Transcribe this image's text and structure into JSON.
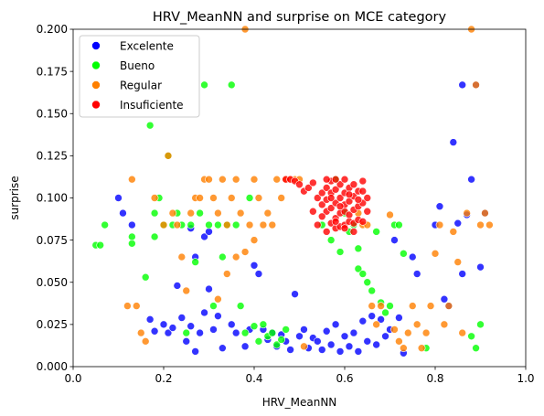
{
  "chart_data": {
    "type": "scatter",
    "title": "HRV_MeanNN and surprise on MCE category",
    "xlabel": "HRV_MeanNN",
    "ylabel": "surprise",
    "xlim": [
      0.0,
      1.0
    ],
    "ylim": [
      0.0,
      0.2
    ],
    "x_ticks": [
      "0.0",
      "0.2",
      "0.4",
      "0.6",
      "0.8",
      "1.0"
    ],
    "y_ticks": [
      "0.000",
      "0.025",
      "0.050",
      "0.075",
      "0.100",
      "0.125",
      "0.150",
      "0.175",
      "0.200"
    ],
    "grid": false,
    "legend_position": "top-left",
    "series": [
      {
        "name": "Excelente",
        "color": "#0000ff",
        "points": [
          [
            0.1,
            0.1
          ],
          [
            0.11,
            0.091
          ],
          [
            0.13,
            0.084
          ],
          [
            0.17,
            0.028
          ],
          [
            0.18,
            0.021
          ],
          [
            0.2,
            0.025
          ],
          [
            0.21,
            0.02
          ],
          [
            0.22,
            0.023
          ],
          [
            0.24,
            0.029
          ],
          [
            0.25,
            0.015
          ],
          [
            0.26,
            0.024
          ],
          [
            0.27,
            0.009
          ],
          [
            0.28,
            0.02
          ],
          [
            0.29,
            0.032
          ],
          [
            0.3,
            0.046
          ],
          [
            0.31,
            0.022
          ],
          [
            0.32,
            0.03
          ],
          [
            0.33,
            0.011
          ],
          [
            0.35,
            0.025
          ],
          [
            0.36,
            0.02
          ],
          [
            0.38,
            0.012
          ],
          [
            0.39,
            0.022
          ],
          [
            0.4,
            0.06
          ],
          [
            0.41,
            0.055
          ],
          [
            0.42,
            0.022
          ],
          [
            0.43,
            0.016
          ],
          [
            0.44,
            0.02
          ],
          [
            0.45,
            0.012
          ],
          [
            0.46,
            0.019
          ],
          [
            0.47,
            0.015
          ],
          [
            0.48,
            0.01
          ],
          [
            0.49,
            0.043
          ],
          [
            0.5,
            0.018
          ],
          [
            0.51,
            0.022
          ],
          [
            0.52,
            0.011
          ],
          [
            0.53,
            0.017
          ],
          [
            0.54,
            0.015
          ],
          [
            0.55,
            0.01
          ],
          [
            0.56,
            0.021
          ],
          [
            0.57,
            0.013
          ],
          [
            0.58,
            0.025
          ],
          [
            0.59,
            0.009
          ],
          [
            0.6,
            0.018
          ],
          [
            0.61,
            0.012
          ],
          [
            0.62,
            0.02
          ],
          [
            0.63,
            0.009
          ],
          [
            0.64,
            0.027
          ],
          [
            0.65,
            0.015
          ],
          [
            0.66,
            0.03
          ],
          [
            0.67,
            0.013
          ],
          [
            0.68,
            0.028
          ],
          [
            0.69,
            0.018
          ],
          [
            0.7,
            0.022
          ],
          [
            0.71,
            0.075
          ],
          [
            0.72,
            0.029
          ],
          [
            0.73,
            0.008
          ],
          [
            0.75,
            0.065
          ],
          [
            0.76,
            0.055
          ],
          [
            0.8,
            0.084
          ],
          [
            0.81,
            0.095
          ],
          [
            0.82,
            0.04
          ],
          [
            0.83,
            0.036
          ],
          [
            0.84,
            0.133
          ],
          [
            0.86,
            0.167
          ],
          [
            0.87,
            0.09
          ],
          [
            0.88,
            0.111
          ],
          [
            0.89,
            0.167
          ],
          [
            0.9,
            0.059
          ],
          [
            0.91,
            0.091
          ],
          [
            0.85,
            0.085
          ],
          [
            0.86,
            0.055
          ],
          [
            0.23,
            0.048
          ],
          [
            0.26,
            0.082
          ],
          [
            0.27,
            0.065
          ],
          [
            0.29,
            0.077
          ],
          [
            0.3,
            0.08
          ]
        ]
      },
      {
        "name": "Bueno",
        "color": "#00ff00",
        "points": [
          [
            0.05,
            0.072
          ],
          [
            0.06,
            0.072
          ],
          [
            0.07,
            0.084
          ],
          [
            0.13,
            0.073
          ],
          [
            0.13,
            0.077
          ],
          [
            0.16,
            0.053
          ],
          [
            0.17,
            0.143
          ],
          [
            0.18,
            0.077
          ],
          [
            0.18,
            0.091
          ],
          [
            0.19,
            0.1
          ],
          [
            0.2,
            0.084
          ],
          [
            0.21,
            0.125
          ],
          [
            0.22,
            0.084
          ],
          [
            0.23,
            0.091
          ],
          [
            0.24,
            0.084
          ],
          [
            0.25,
            0.02
          ],
          [
            0.26,
            0.084
          ],
          [
            0.27,
            0.062
          ],
          [
            0.28,
            0.091
          ],
          [
            0.29,
            0.167
          ],
          [
            0.3,
            0.084
          ],
          [
            0.31,
            0.036
          ],
          [
            0.32,
            0.084
          ],
          [
            0.33,
            0.065
          ],
          [
            0.34,
            0.084
          ],
          [
            0.35,
            0.167
          ],
          [
            0.36,
            0.084
          ],
          [
            0.37,
            0.036
          ],
          [
            0.38,
            0.02
          ],
          [
            0.39,
            0.1
          ],
          [
            0.4,
            0.024
          ],
          [
            0.41,
            0.015
          ],
          [
            0.42,
            0.025
          ],
          [
            0.43,
            0.018
          ],
          [
            0.44,
            0.02
          ],
          [
            0.45,
            0.013
          ],
          [
            0.46,
            0.016
          ],
          [
            0.47,
            0.022
          ],
          [
            0.58,
            0.111
          ],
          [
            0.6,
            0.091
          ],
          [
            0.62,
            0.084
          ],
          [
            0.63,
            0.058
          ],
          [
            0.64,
            0.055
          ],
          [
            0.65,
            0.05
          ],
          [
            0.66,
            0.045
          ],
          [
            0.67,
            0.08
          ],
          [
            0.68,
            0.038
          ],
          [
            0.69,
            0.032
          ],
          [
            0.7,
            0.036
          ],
          [
            0.71,
            0.084
          ],
          [
            0.72,
            0.084
          ],
          [
            0.73,
            0.067
          ],
          [
            0.78,
            0.011
          ],
          [
            0.88,
            0.018
          ],
          [
            0.89,
            0.011
          ],
          [
            0.9,
            0.025
          ],
          [
            0.55,
            0.084
          ],
          [
            0.57,
            0.075
          ],
          [
            0.59,
            0.068
          ],
          [
            0.61,
            0.08
          ],
          [
            0.63,
            0.07
          ]
        ]
      },
      {
        "name": "Regular",
        "color": "#ff8000",
        "points": [
          [
            0.12,
            0.036
          ],
          [
            0.13,
            0.111
          ],
          [
            0.14,
            0.036
          ],
          [
            0.15,
            0.02
          ],
          [
            0.16,
            0.015
          ],
          [
            0.18,
            0.1
          ],
          [
            0.2,
            0.084
          ],
          [
            0.21,
            0.125
          ],
          [
            0.22,
            0.091
          ],
          [
            0.23,
            0.084
          ],
          [
            0.24,
            0.065
          ],
          [
            0.25,
            0.045
          ],
          [
            0.26,
            0.091
          ],
          [
            0.27,
            0.1
          ],
          [
            0.28,
            0.1
          ],
          [
            0.29,
            0.111
          ],
          [
            0.3,
            0.111
          ],
          [
            0.31,
            0.1
          ],
          [
            0.32,
            0.091
          ],
          [
            0.33,
            0.111
          ],
          [
            0.34,
            0.084
          ],
          [
            0.35,
            0.1
          ],
          [
            0.36,
            0.111
          ],
          [
            0.37,
            0.091
          ],
          [
            0.38,
            0.2
          ],
          [
            0.39,
            0.084
          ],
          [
            0.4,
            0.111
          ],
          [
            0.41,
            0.1
          ],
          [
            0.42,
            0.084
          ],
          [
            0.43,
            0.091
          ],
          [
            0.44,
            0.084
          ],
          [
            0.45,
            0.111
          ],
          [
            0.46,
            0.1
          ],
          [
            0.47,
            0.111
          ],
          [
            0.48,
            0.111
          ],
          [
            0.49,
            0.111
          ],
          [
            0.5,
            0.111
          ],
          [
            0.51,
            0.012
          ],
          [
            0.63,
            0.091
          ],
          [
            0.64,
            0.084
          ],
          [
            0.65,
            0.084
          ],
          [
            0.66,
            0.036
          ],
          [
            0.67,
            0.025
          ],
          [
            0.68,
            0.036
          ],
          [
            0.7,
            0.09
          ],
          [
            0.71,
            0.022
          ],
          [
            0.72,
            0.015
          ],
          [
            0.73,
            0.011
          ],
          [
            0.74,
            0.02
          ],
          [
            0.75,
            0.036
          ],
          [
            0.76,
            0.025
          ],
          [
            0.77,
            0.011
          ],
          [
            0.78,
            0.02
          ],
          [
            0.79,
            0.036
          ],
          [
            0.8,
            0.067
          ],
          [
            0.81,
            0.084
          ],
          [
            0.82,
            0.025
          ],
          [
            0.83,
            0.036
          ],
          [
            0.84,
            0.08
          ],
          [
            0.85,
            0.062
          ],
          [
            0.86,
            0.02
          ],
          [
            0.87,
            0.091
          ],
          [
            0.88,
            0.2
          ],
          [
            0.89,
            0.167
          ],
          [
            0.9,
            0.084
          ],
          [
            0.91,
            0.091
          ],
          [
            0.92,
            0.084
          ],
          [
            0.4,
            0.075
          ],
          [
            0.38,
            0.068
          ],
          [
            0.36,
            0.065
          ],
          [
            0.34,
            0.055
          ],
          [
            0.32,
            0.04
          ]
        ]
      },
      {
        "name": "Insuficiente",
        "color": "#ff0000",
        "points": [
          [
            0.47,
            0.111
          ],
          [
            0.48,
            0.111
          ],
          [
            0.49,
            0.11
          ],
          [
            0.5,
            0.108
          ],
          [
            0.51,
            0.104
          ],
          [
            0.52,
            0.106
          ],
          [
            0.53,
            0.109
          ],
          [
            0.54,
            0.1
          ],
          [
            0.55,
            0.096
          ],
          [
            0.55,
            0.103
          ],
          [
            0.56,
            0.092
          ],
          [
            0.56,
            0.099
          ],
          [
            0.56,
            0.106
          ],
          [
            0.57,
            0.085
          ],
          [
            0.57,
            0.094
          ],
          [
            0.57,
            0.103
          ],
          [
            0.57,
            0.11
          ],
          [
            0.58,
            0.082
          ],
          [
            0.58,
            0.088
          ],
          [
            0.58,
            0.097
          ],
          [
            0.58,
            0.105
          ],
          [
            0.59,
            0.083
          ],
          [
            0.59,
            0.091
          ],
          [
            0.59,
            0.1
          ],
          [
            0.59,
            0.108
          ],
          [
            0.6,
            0.084
          ],
          [
            0.6,
            0.092
          ],
          [
            0.6,
            0.096
          ],
          [
            0.6,
            0.103
          ],
          [
            0.61,
            0.086
          ],
          [
            0.61,
            0.09
          ],
          [
            0.61,
            0.098
          ],
          [
            0.61,
            0.106
          ],
          [
            0.62,
            0.085
          ],
          [
            0.62,
            0.093
          ],
          [
            0.62,
            0.101
          ],
          [
            0.63,
            0.087
          ],
          [
            0.63,
            0.095
          ],
          [
            0.63,
            0.104
          ],
          [
            0.64,
            0.086
          ],
          [
            0.64,
            0.097
          ],
          [
            0.64,
            0.11
          ],
          [
            0.65,
            0.092
          ],
          [
            0.65,
            0.1
          ],
          [
            0.54,
            0.084
          ],
          [
            0.56,
            0.08
          ],
          [
            0.58,
            0.086
          ],
          [
            0.6,
            0.082
          ],
          [
            0.62,
            0.08
          ],
          [
            0.53,
            0.092
          ],
          [
            0.55,
            0.089
          ],
          [
            0.57,
            0.1
          ],
          [
            0.59,
            0.095
          ],
          [
            0.61,
            0.102
          ],
          [
            0.63,
            0.099
          ],
          [
            0.56,
            0.111
          ],
          [
            0.58,
            0.111
          ],
          [
            0.6,
            0.111
          ],
          [
            0.62,
            0.108
          ],
          [
            0.64,
            0.104
          ]
        ]
      }
    ]
  }
}
